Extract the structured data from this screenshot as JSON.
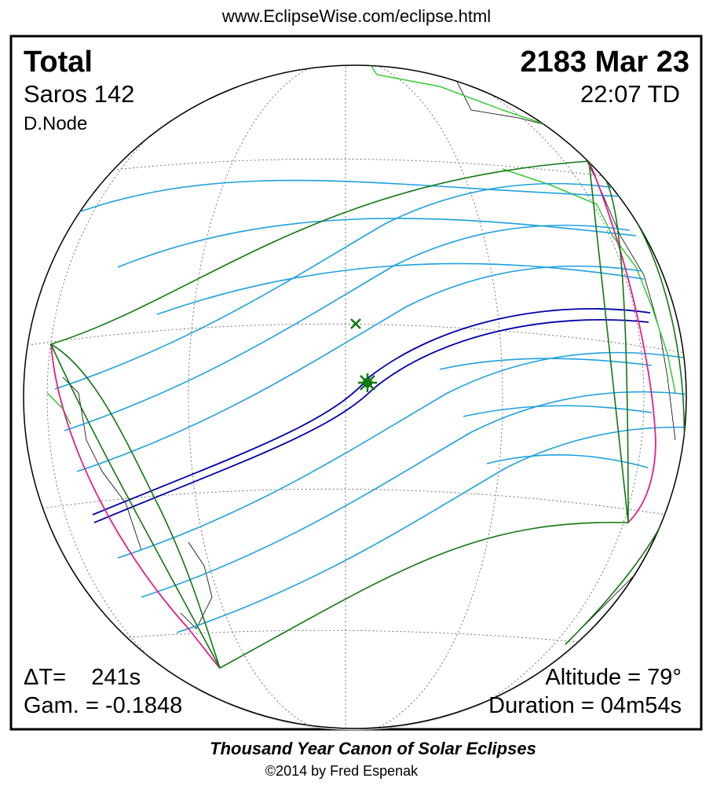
{
  "header": {
    "url": "www.EclipseWise.com/eclipse.html"
  },
  "info": {
    "eclipse_type": "Total",
    "saros": "Saros 142",
    "node": "D.Node",
    "date": "2183 Mar 23",
    "time": "22:07 TD",
    "delta_t": "ΔT=    241s",
    "gamma": "Gam. = -0.1848",
    "altitude": "Altitude = 79°",
    "duration": "Duration = 04m54s"
  },
  "footer": {
    "title": "Thousand Year Canon of Solar Eclipses",
    "copyright": "©2014 by Fred Espenak"
  }
}
